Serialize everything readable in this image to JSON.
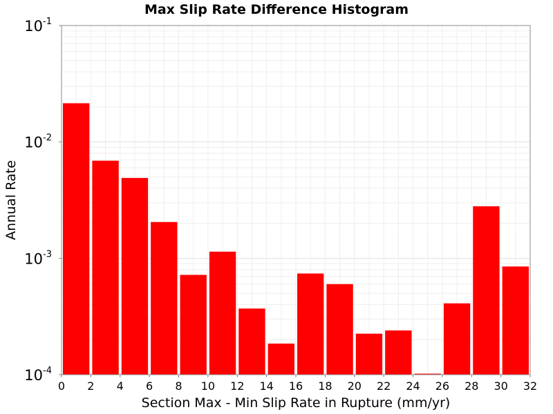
{
  "chart_data": {
    "type": "bar",
    "title": "Max Slip Rate Difference Histogram",
    "xlabel": "Section Max - Min Slip Rate in Rupture (mm/yr)",
    "ylabel": "Annual Rate",
    "xlim": [
      0,
      32
    ],
    "ylim": [
      0.0001,
      0.1
    ],
    "y_scale": "log",
    "grid": true,
    "bar_color": "#ff0000",
    "bin_width": 2,
    "x_ticks": [
      "0",
      "2",
      "4",
      "6",
      "8",
      "10",
      "12",
      "14",
      "16",
      "18",
      "20",
      "22",
      "24",
      "26",
      "28",
      "30",
      "32"
    ],
    "y_ticks": [
      {
        "base": "10",
        "exp": "-1"
      },
      {
        "base": "10",
        "exp": "-2"
      },
      {
        "base": "10",
        "exp": "-3"
      },
      {
        "base": "10",
        "exp": "-4"
      }
    ],
    "bins": [
      {
        "x": 1,
        "value": 0.0215
      },
      {
        "x": 3,
        "value": 0.0069
      },
      {
        "x": 5,
        "value": 0.0049
      },
      {
        "x": 7,
        "value": 0.00205
      },
      {
        "x": 9,
        "value": 0.00072
      },
      {
        "x": 11,
        "value": 0.00114
      },
      {
        "x": 13,
        "value": 0.00037
      },
      {
        "x": 15,
        "value": 0.000185
      },
      {
        "x": 17,
        "value": 0.00074
      },
      {
        "x": 19,
        "value": 0.0006
      },
      {
        "x": 21,
        "value": 0.000225
      },
      {
        "x": 23,
        "value": 0.00024
      },
      {
        "x": 25,
        "value": 0.000102
      },
      {
        "x": 27,
        "value": 0.00041
      },
      {
        "x": 29,
        "value": 0.0028
      },
      {
        "x": 31,
        "value": 0.00085
      }
    ]
  }
}
